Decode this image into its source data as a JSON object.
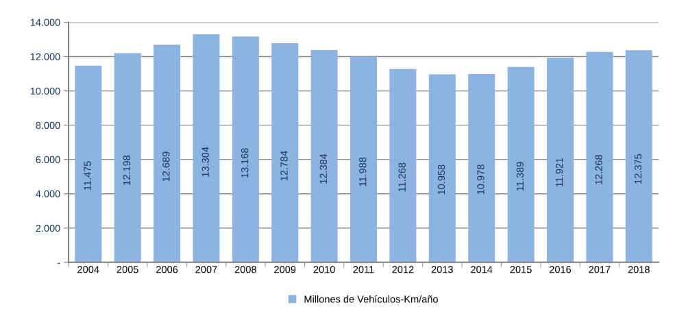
{
  "chart_data": {
    "type": "bar",
    "categories": [
      "2004",
      "2005",
      "2006",
      "2007",
      "2008",
      "2009",
      "2010",
      "2011",
      "2012",
      "2013",
      "2014",
      "2015",
      "2016",
      "2017",
      "2018"
    ],
    "series": [
      {
        "name": "Millones de Vehículos-Km/año",
        "color": "#8db3e2",
        "values": [
          11475,
          12198,
          12689,
          13304,
          13168,
          12784,
          12384,
          11988,
          11268,
          10958,
          10978,
          11389,
          11921,
          12268,
          12375
        ],
        "value_labels": [
          "11.475",
          "12.198",
          "12.689",
          "13.304",
          "13.168",
          "12.784",
          "12.384",
          "11.988",
          "11.268",
          "10.958",
          "10.978",
          "11.389",
          "11.921",
          "12.268",
          "12.375"
        ]
      }
    ],
    "ylim": [
      0,
      14000
    ],
    "yticks": [
      {
        "value": 0,
        "label": "-"
      },
      {
        "value": 2000,
        "label": "2.000"
      },
      {
        "value": 4000,
        "label": "4.000"
      },
      {
        "value": 6000,
        "label": "6.000"
      },
      {
        "value": 8000,
        "label": "8.000"
      },
      {
        "value": 10000,
        "label": "10.000"
      },
      {
        "value": 12000,
        "label": "12.000"
      },
      {
        "value": 14000,
        "label": "14.000"
      }
    ],
    "grid": "y",
    "legend": "bottom"
  }
}
